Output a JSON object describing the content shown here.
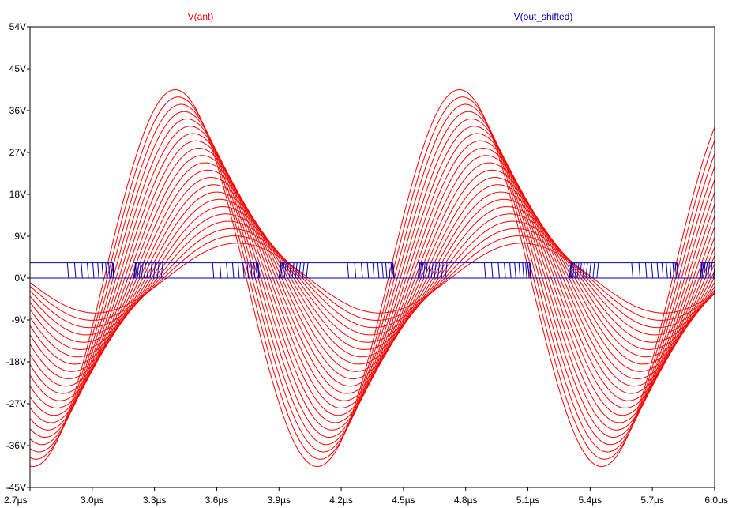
{
  "chart_data": {
    "type": "line",
    "traces": [
      {
        "name": "V(ant)",
        "color": "#ff0000"
      },
      {
        "name": "V(out_shifted)",
        "color": "#0000b0"
      }
    ],
    "x_unit": "µs",
    "y_unit": "V",
    "xlim": [
      2.7,
      6.0
    ],
    "ylim": [
      -45,
      54
    ],
    "x_ticks": [
      "2.7µs",
      "3.0µs",
      "3.3µs",
      "3.6µs",
      "3.9µs",
      "4.2µs",
      "4.5µs",
      "4.8µs",
      "5.1µs",
      "5.4µs",
      "5.7µs",
      "6.0µs"
    ],
    "x_tick_values": [
      2.7,
      3.0,
      3.3,
      3.6,
      3.9,
      4.2,
      4.5,
      4.8,
      5.1,
      5.4,
      5.7,
      6.0
    ],
    "y_ticks": [
      "54V",
      "45V",
      "36V",
      "27V",
      "18V",
      "9V",
      "0V",
      "-9V",
      "-18V",
      "-27V",
      "-36V",
      "-45V"
    ],
    "y_tick_values": [
      54,
      45,
      36,
      27,
      18,
      9,
      0,
      -9,
      -18,
      -27,
      -36,
      -45
    ],
    "grid": false,
    "v_ant_family": {
      "description_of_shape": "sinusoid family, period 1.37us, amplitude decreasing and phase increasing across the family",
      "period_us": 1.37,
      "peak_time_us": 3.4,
      "peak_amplitude_max": 40.5,
      "peak_amplitude_min": 7.5,
      "peak_time_shift_us": 0.3,
      "count": 22
    },
    "v_out_shifted": {
      "high_level": 3.3,
      "low_level": 0,
      "high_intervals_us": [
        [
          2.7,
          3.1
        ],
        [
          3.2,
          3.8
        ],
        [
          3.9,
          4.45
        ],
        [
          4.57,
          5.11
        ],
        [
          5.3,
          5.82
        ],
        [
          5.93,
          6.0
        ]
      ],
      "edge_spread_us": 0.22
    }
  }
}
